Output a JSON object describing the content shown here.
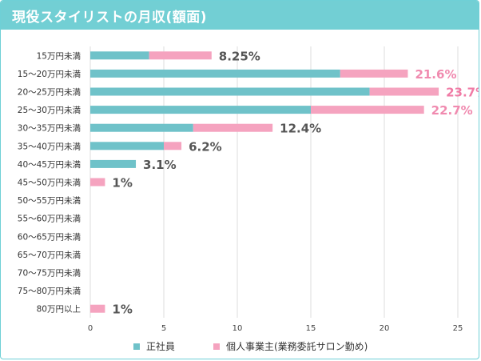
{
  "chart_data": {
    "type": "bar",
    "title": "現役スタイリストの月収(額面)",
    "categories": [
      "15万円未満",
      "15〜20万円未満",
      "20〜25万円未満",
      "25〜30万円未満",
      "30〜35万円未満",
      "35〜40万円未満",
      "40〜45万円未満",
      "45〜50万円未満",
      "50〜55万円未満",
      "55〜60万円未満",
      "60〜65万円未満",
      "65〜70万円未満",
      "70〜75万円未満",
      "75〜80万円未満",
      "80万円以上"
    ],
    "series": [
      {
        "name": "正社員",
        "color": "#6fc2c9",
        "values": [
          4,
          17,
          19,
          15,
          7,
          5,
          3.1,
          0,
          0,
          0,
          0,
          0,
          0,
          0,
          0
        ]
      },
      {
        "name": "個人事業主(業務委託サロン勤め)",
        "color": "#f5a3bf",
        "values": [
          4.25,
          4.6,
          4.7,
          7.7,
          5.4,
          1.2,
          0,
          1,
          0,
          0,
          0,
          0,
          0,
          0,
          1
        ]
      }
    ],
    "totals": [
      "8.25%",
      "21.6%",
      "23.7%",
      "22.7%",
      "12.4%",
      "6.2%",
      "3.1%",
      "1%",
      "",
      "",
      "",
      "",
      "",
      "",
      "1%"
    ],
    "total_colors": [
      "#555555",
      "#f08aaf",
      "#f07aa5",
      "#f08aaf",
      "#555555",
      "#555555",
      "#555555",
      "#555555",
      "",
      "",
      "",
      "",
      "",
      "",
      "#555555"
    ],
    "xlim": [
      0,
      25
    ],
    "xticks": [
      "0",
      "5",
      "10",
      "15",
      "20",
      "25"
    ],
    "grid": true,
    "stacked": true,
    "orientation": "horizontal",
    "legend_position": "bottom"
  }
}
